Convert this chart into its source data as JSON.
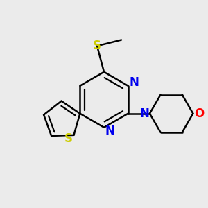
{
  "bg_color": "#ebebeb",
  "bond_color": "#000000",
  "n_color": "#0000ee",
  "s_color": "#cccc00",
  "o_color": "#ff0000",
  "line_width": 1.8,
  "font_size": 12,
  "figsize": [
    3.0,
    3.0
  ],
  "dpi": 100,
  "xlim": [
    -1.1,
    1.3
  ],
  "ylim": [
    -1.1,
    1.1
  ]
}
